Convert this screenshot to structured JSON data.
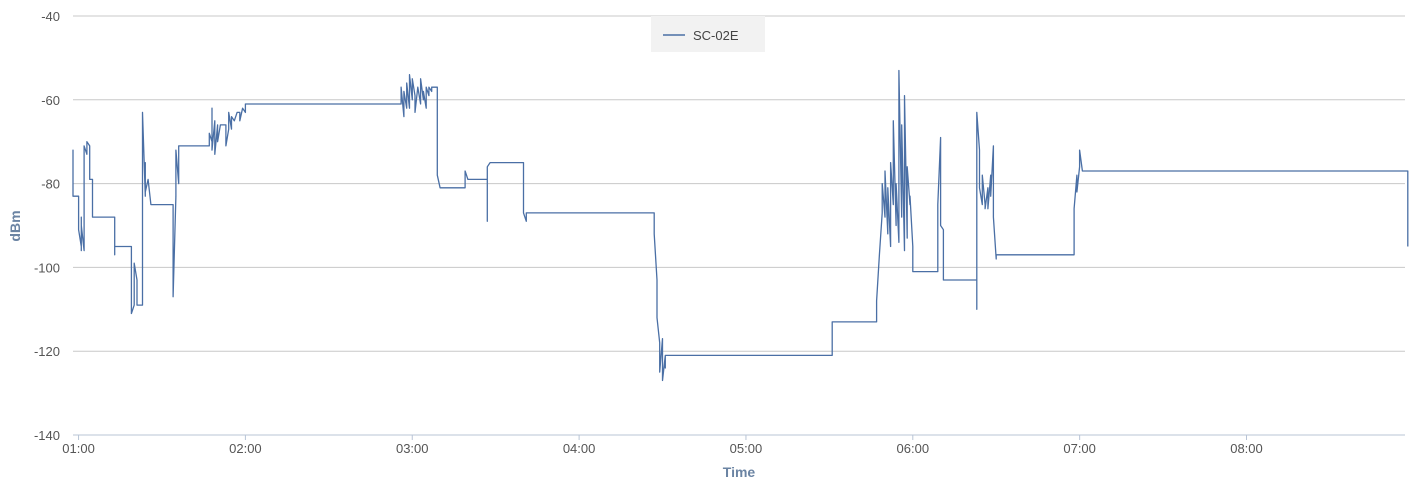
{
  "chart_data": {
    "type": "line",
    "title": "",
    "xlabel": "Time",
    "ylabel": "dBm",
    "ylim": [
      -140,
      -40
    ],
    "xlim": [
      "00:58",
      "08:57"
    ],
    "y_ticks": [
      -40,
      -60,
      -80,
      -100,
      -120,
      -140
    ],
    "x_ticks": [
      "01:00",
      "02:00",
      "03:00",
      "04:00",
      "05:00",
      "06:00",
      "07:00",
      "08:00"
    ],
    "grid": true,
    "legend_position": "top-center",
    "colors": {
      "series": "#4a6fa5",
      "axis_title": "#6b84a3",
      "grid": "#c8c8c8"
    },
    "series": [
      {
        "name": "SC-02E",
        "points": [
          [
            "00:58",
            -76
          ],
          [
            "00:58",
            -72
          ],
          [
            "00:58",
            -83
          ],
          [
            "01:00",
            -83
          ],
          [
            "01:00",
            -91
          ],
          [
            "01:01",
            -95
          ],
          [
            "01:01",
            -88
          ],
          [
            "01:01",
            -96
          ],
          [
            "01:01",
            -90
          ],
          [
            "01:02",
            -96
          ],
          [
            "01:02",
            -87
          ],
          [
            "01:02",
            -75
          ],
          [
            "01:02",
            -71
          ],
          [
            "01:03",
            -73
          ],
          [
            "01:03",
            -70
          ],
          [
            "01:04",
            -71
          ],
          [
            "01:04",
            -73
          ],
          [
            "01:04",
            -79
          ],
          [
            "01:05",
            -79
          ],
          [
            "01:05",
            -85
          ],
          [
            "01:05",
            -88
          ],
          [
            "01:13",
            -88
          ],
          [
            "01:13",
            -95
          ],
          [
            "01:13",
            -97
          ],
          [
            "01:13",
            -95
          ],
          [
            "01:19",
            -95
          ],
          [
            "01:19",
            -111
          ],
          [
            "01:20",
            -109
          ],
          [
            "01:20",
            -99
          ],
          [
            "01:21",
            -103
          ],
          [
            "01:21",
            -109
          ],
          [
            "01:23",
            -109
          ],
          [
            "01:23",
            -80
          ],
          [
            "01:23",
            -63
          ],
          [
            "01:24",
            -83
          ],
          [
            "01:24",
            -75
          ],
          [
            "01:24",
            -82
          ],
          [
            "01:25",
            -79
          ],
          [
            "01:26",
            -85
          ],
          [
            "01:34",
            -85
          ],
          [
            "01:34",
            -107
          ],
          [
            "01:35",
            -83
          ],
          [
            "01:35",
            -72
          ],
          [
            "01:36",
            -80
          ],
          [
            "01:36",
            -71
          ],
          [
            "01:47",
            -71
          ],
          [
            "01:47",
            -68
          ],
          [
            "01:48",
            -70
          ],
          [
            "01:48",
            -62
          ],
          [
            "01:48",
            -72
          ],
          [
            "01:49",
            -65
          ],
          [
            "01:49",
            -73
          ],
          [
            "01:50",
            -66
          ],
          [
            "01:50",
            -70
          ],
          [
            "01:51",
            -66
          ],
          [
            "01:53",
            -66
          ],
          [
            "01:53",
            -71
          ],
          [
            "01:54",
            -67
          ],
          [
            "01:54",
            -63
          ],
          [
            "01:55",
            -67
          ],
          [
            "01:55",
            -64
          ],
          [
            "01:56",
            -65
          ],
          [
            "01:57",
            -63
          ],
          [
            "01:58",
            -63
          ],
          [
            "01:58",
            -65
          ],
          [
            "01:59",
            -62
          ],
          [
            "02:00",
            -63
          ],
          [
            "02:00",
            -61
          ],
          [
            "02:05",
            -61
          ],
          [
            "02:50",
            -61
          ],
          [
            "02:56",
            -61
          ],
          [
            "02:56",
            -57
          ],
          [
            "02:57",
            -64
          ],
          [
            "02:57",
            -58
          ],
          [
            "02:58",
            -62
          ],
          [
            "02:58",
            -56
          ],
          [
            "02:59",
            -62
          ],
          [
            "02:59",
            -54
          ],
          [
            "03:00",
            -60
          ],
          [
            "03:00",
            -55
          ],
          [
            "03:01",
            -59
          ],
          [
            "03:01",
            -63
          ],
          [
            "03:02",
            -57
          ],
          [
            "03:03",
            -61
          ],
          [
            "03:03",
            -55
          ],
          [
            "03:04",
            -60
          ],
          [
            "03:04",
            -58
          ],
          [
            "03:05",
            -62
          ],
          [
            "03:05",
            -57
          ],
          [
            "03:06",
            -59
          ],
          [
            "03:06",
            -57
          ],
          [
            "03:07",
            -58
          ],
          [
            "03:07",
            -57
          ],
          [
            "03:09",
            -57
          ],
          [
            "03:09",
            -78
          ],
          [
            "03:10",
            -81
          ],
          [
            "03:19",
            -81
          ],
          [
            "03:19",
            -77
          ],
          [
            "03:20",
            -79
          ],
          [
            "03:27",
            -79
          ],
          [
            "03:27",
            -89
          ],
          [
            "03:27",
            -76
          ],
          [
            "03:28",
            -75
          ],
          [
            "03:28",
            -75
          ],
          [
            "03:40",
            -75
          ],
          [
            "03:40",
            -87
          ],
          [
            "03:41",
            -89
          ],
          [
            "03:41",
            -87
          ],
          [
            "04:27",
            -87
          ],
          [
            "04:27",
            -92
          ],
          [
            "04:28",
            -103
          ],
          [
            "04:28",
            -112
          ],
          [
            "04:29",
            -118
          ],
          [
            "04:29",
            -125
          ],
          [
            "04:30",
            -117
          ],
          [
            "04:30",
            -127
          ],
          [
            "04:31",
            -121
          ],
          [
            "04:31",
            -124
          ],
          [
            "04:31",
            -121
          ],
          [
            "04:32",
            -121
          ],
          [
            "05:10",
            -121
          ],
          [
            "05:31",
            -121
          ],
          [
            "05:31",
            -113
          ],
          [
            "05:47",
            -113
          ],
          [
            "05:47",
            -108
          ],
          [
            "05:48",
            -97
          ],
          [
            "05:49",
            -87
          ],
          [
            "05:49",
            -80
          ],
          [
            "05:50",
            -88
          ],
          [
            "05:50",
            -77
          ],
          [
            "05:51",
            -92
          ],
          [
            "05:51",
            -81
          ],
          [
            "05:52",
            -95
          ],
          [
            "05:52",
            -75
          ],
          [
            "05:53",
            -85
          ],
          [
            "05:53",
            -65
          ],
          [
            "05:54",
            -90
          ],
          [
            "05:54",
            -80
          ],
          [
            "05:55",
            -94
          ],
          [
            "05:55",
            -70
          ],
          [
            "05:55",
            -53
          ],
          [
            "05:56",
            -88
          ],
          [
            "05:56",
            -66
          ],
          [
            "05:57",
            -96
          ],
          [
            "05:57",
            -59
          ],
          [
            "05:58",
            -93
          ],
          [
            "05:58",
            -76
          ],
          [
            "05:59",
            -85
          ],
          [
            "05:59",
            -83
          ],
          [
            "06:00",
            -95
          ],
          [
            "06:00",
            -96
          ],
          [
            "06:00",
            -101
          ],
          [
            "06:09",
            -101
          ],
          [
            "06:09",
            -85
          ],
          [
            "06:10",
            -69
          ],
          [
            "06:10",
            -90
          ],
          [
            "06:11",
            -91
          ],
          [
            "06:11",
            -101
          ],
          [
            "06:11",
            -103
          ],
          [
            "06:23",
            -103
          ],
          [
            "06:23",
            -110
          ],
          [
            "06:23",
            -63
          ],
          [
            "06:24",
            -72
          ],
          [
            "06:24",
            -81
          ],
          [
            "06:25",
            -85
          ],
          [
            "06:25",
            -78
          ],
          [
            "06:26",
            -85
          ],
          [
            "06:26",
            -86
          ],
          [
            "06:27",
            -81
          ],
          [
            "06:27",
            -86
          ],
          [
            "06:28",
            -78
          ],
          [
            "06:28",
            -83
          ],
          [
            "06:29",
            -71
          ],
          [
            "06:29",
            -88
          ],
          [
            "06:30",
            -98
          ],
          [
            "06:30",
            -97
          ],
          [
            "06:58",
            -97
          ],
          [
            "06:58",
            -86
          ],
          [
            "06:59",
            -78
          ],
          [
            "06:59",
            -82
          ],
          [
            "07:00",
            -76
          ],
          [
            "07:00",
            -72
          ],
          [
            "07:01",
            -77
          ],
          [
            "07:01",
            -77
          ],
          [
            "07:36",
            -77
          ],
          [
            "08:58",
            -77
          ],
          [
            "08:58",
            -95
          ]
        ]
      }
    ]
  }
}
